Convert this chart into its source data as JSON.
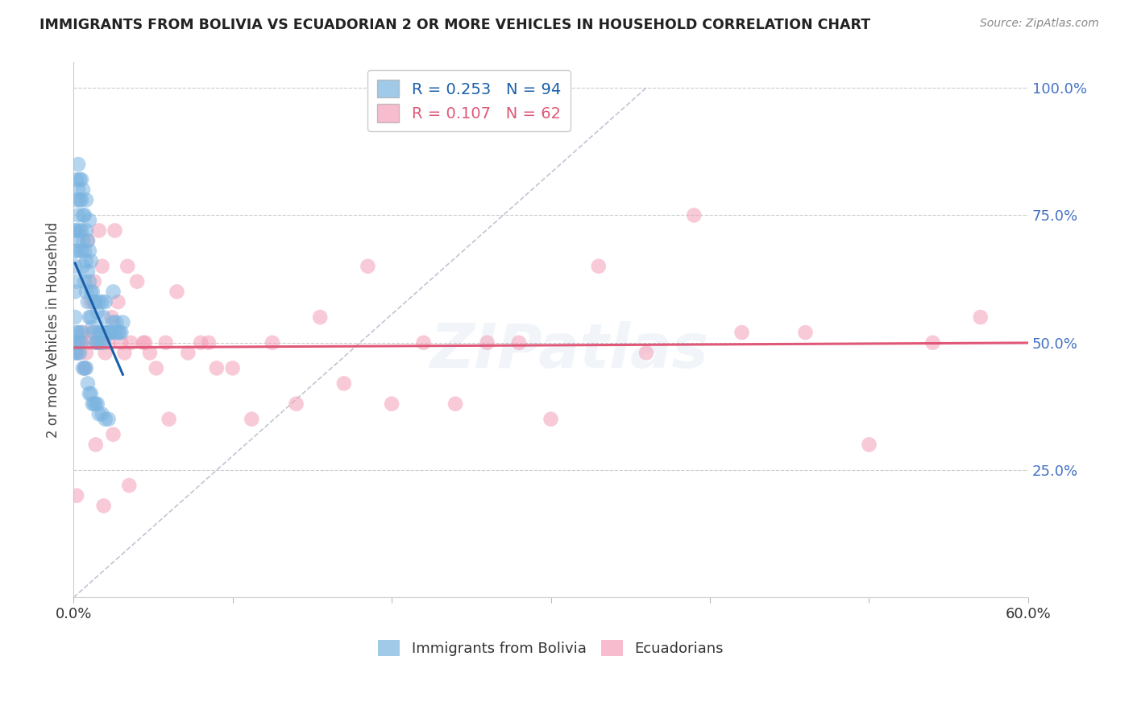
{
  "title": "IMMIGRANTS FROM BOLIVIA VS ECUADORIAN 2 OR MORE VEHICLES IN HOUSEHOLD CORRELATION CHART",
  "source_text": "Source: ZipAtlas.com",
  "ylabel": "2 or more Vehicles in Household",
  "blue_color": "#7ab4e0",
  "pink_color": "#f4a0b8",
  "blue_line_color": "#1a5fa8",
  "pink_line_color": "#e05878",
  "blue_label": "Immigrants from Bolivia",
  "pink_label": "Ecuadorians",
  "blue_R": 0.253,
  "blue_N": 94,
  "pink_R": 0.107,
  "pink_N": 62,
  "right_axis_color": "#4472c4",
  "title_color": "#222222",
  "source_color": "#888888",
  "xmin": 0.0,
  "xmax": 0.6,
  "ymin": 0.0,
  "ymax": 1.05,
  "bolivia_x": [
    0.001,
    0.001,
    0.001,
    0.001,
    0.002,
    0.002,
    0.002,
    0.002,
    0.002,
    0.003,
    0.003,
    0.003,
    0.003,
    0.004,
    0.004,
    0.004,
    0.005,
    0.005,
    0.005,
    0.005,
    0.006,
    0.006,
    0.006,
    0.006,
    0.007,
    0.007,
    0.007,
    0.008,
    0.008,
    0.008,
    0.008,
    0.009,
    0.009,
    0.009,
    0.01,
    0.01,
    0.01,
    0.01,
    0.011,
    0.011,
    0.011,
    0.012,
    0.012,
    0.013,
    0.013,
    0.014,
    0.014,
    0.015,
    0.015,
    0.016,
    0.016,
    0.017,
    0.018,
    0.018,
    0.019,
    0.019,
    0.02,
    0.02,
    0.021,
    0.022,
    0.023,
    0.024,
    0.025,
    0.025,
    0.026,
    0.027,
    0.028,
    0.029,
    0.03,
    0.031,
    0.001,
    0.001,
    0.001,
    0.002,
    0.002,
    0.003,
    0.003,
    0.004,
    0.005,
    0.005,
    0.006,
    0.007,
    0.008,
    0.009,
    0.01,
    0.011,
    0.012,
    0.013,
    0.014,
    0.015,
    0.016,
    0.018,
    0.02,
    0.022
  ],
  "bolivia_y": [
    0.6,
    0.65,
    0.68,
    0.72,
    0.62,
    0.68,
    0.72,
    0.78,
    0.82,
    0.7,
    0.75,
    0.8,
    0.85,
    0.72,
    0.78,
    0.82,
    0.68,
    0.72,
    0.78,
    0.82,
    0.65,
    0.7,
    0.75,
    0.8,
    0.62,
    0.68,
    0.75,
    0.6,
    0.66,
    0.72,
    0.78,
    0.58,
    0.64,
    0.7,
    0.55,
    0.62,
    0.68,
    0.74,
    0.55,
    0.6,
    0.66,
    0.53,
    0.6,
    0.52,
    0.58,
    0.5,
    0.58,
    0.5,
    0.56,
    0.52,
    0.58,
    0.5,
    0.52,
    0.58,
    0.5,
    0.55,
    0.52,
    0.58,
    0.52,
    0.52,
    0.52,
    0.52,
    0.54,
    0.6,
    0.52,
    0.54,
    0.52,
    0.52,
    0.52,
    0.54,
    0.5,
    0.55,
    0.48,
    0.52,
    0.48,
    0.52,
    0.5,
    0.48,
    0.5,
    0.52,
    0.45,
    0.45,
    0.45,
    0.42,
    0.4,
    0.4,
    0.38,
    0.38,
    0.38,
    0.38,
    0.36,
    0.36,
    0.35,
    0.35
  ],
  "ecuador_x": [
    0.002,
    0.003,
    0.004,
    0.005,
    0.006,
    0.007,
    0.008,
    0.009,
    0.01,
    0.011,
    0.012,
    0.013,
    0.015,
    0.016,
    0.017,
    0.018,
    0.02,
    0.022,
    0.024,
    0.026,
    0.028,
    0.03,
    0.032,
    0.034,
    0.036,
    0.04,
    0.044,
    0.048,
    0.052,
    0.058,
    0.065,
    0.072,
    0.08,
    0.09,
    0.1,
    0.112,
    0.125,
    0.14,
    0.155,
    0.17,
    0.185,
    0.2,
    0.22,
    0.24,
    0.26,
    0.28,
    0.3,
    0.33,
    0.36,
    0.39,
    0.42,
    0.46,
    0.5,
    0.54,
    0.57,
    0.014,
    0.019,
    0.025,
    0.035,
    0.045,
    0.06,
    0.085
  ],
  "ecuador_y": [
    0.2,
    0.48,
    0.5,
    0.5,
    0.52,
    0.45,
    0.48,
    0.7,
    0.5,
    0.58,
    0.52,
    0.62,
    0.5,
    0.72,
    0.5,
    0.65,
    0.48,
    0.5,
    0.55,
    0.72,
    0.58,
    0.5,
    0.48,
    0.65,
    0.5,
    0.62,
    0.5,
    0.48,
    0.45,
    0.5,
    0.6,
    0.48,
    0.5,
    0.45,
    0.45,
    0.35,
    0.5,
    0.38,
    0.55,
    0.42,
    0.65,
    0.38,
    0.5,
    0.38,
    0.5,
    0.5,
    0.35,
    0.65,
    0.48,
    0.75,
    0.52,
    0.52,
    0.3,
    0.5,
    0.55,
    0.3,
    0.18,
    0.32,
    0.22,
    0.5,
    0.35,
    0.5
  ]
}
